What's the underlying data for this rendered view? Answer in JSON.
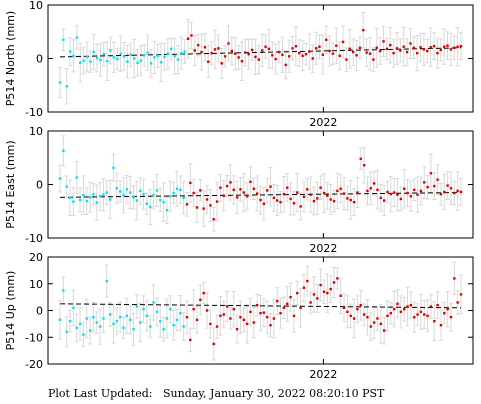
{
  "footer": {
    "label": "Plot Last Updated:",
    "timestamp": "Sunday, January 30, 2022 08:20:10 PST"
  },
  "colors": {
    "before": "#00e5ee",
    "after": "#dd0000",
    "errorbar": "#d8d8d8",
    "trend": "#000000"
  },
  "chart_data": [
    {
      "type": "scatter",
      "ylabel": "P514 North (mm)",
      "ylim": [
        -10,
        10
      ],
      "yticks": [
        -10,
        0,
        10
      ],
      "x_label": "2022",
      "trend": [
        0.3,
        2.0
      ],
      "split_index": 38,
      "values": [
        -4.5,
        3.5,
        -5.2,
        1.3,
        0.5,
        3.9,
        -0.8,
        -0.4,
        0.3,
        -0.6,
        1.2,
        0.1,
        -0.3,
        0.8,
        -0.5,
        1.5,
        0.2,
        -0.1,
        0.9,
        0.4,
        -0.6,
        0.7,
        0.0,
        -0.8,
        -0.4,
        0.6,
        1.1,
        -0.9,
        0.2,
        0.5,
        -0.7,
        0.3,
        0.9,
        1.8,
        0.4,
        -0.2,
        1.0,
        1.3,
        3.7,
        4.3,
        1.5,
        2.5,
        1.2,
        2.1,
        -0.6,
        1.0,
        1.7,
        1.9,
        -0.9,
        0.4,
        2.8,
        1.4,
        0.9,
        0.2,
        -0.5,
        1.1,
        0.8,
        1.6,
        0.3,
        -0.2,
        1.5,
        2.2,
        1.8,
        0.6,
        -0.1,
        1.2,
        0.7,
        -1.2,
        0.4,
        1.9,
        2.3,
        1.0,
        0.5,
        0.8,
        1.3,
        0.0,
        1.9,
        2.2,
        0.7,
        3.5,
        1.4,
        0.9,
        2.4,
        0.5,
        3.1,
        -0.2,
        1.8,
        1.2,
        0.6,
        2.0,
        5.3,
        1.1,
        0.9,
        -0.2,
        2.0,
        1.4,
        3.2,
        1.8,
        2.5,
        1.0,
        1.9,
        1.5,
        2.2,
        1.2,
        2.8,
        2.0,
        1.0,
        2.1,
        1.7,
        1.4,
        2.1,
        2.3,
        1.0,
        1.6,
        2.2,
        2.4,
        1.7,
        2.0,
        2.2,
        2.3
      ]
    },
    {
      "type": "scatter",
      "ylabel": "P514 East (mm)",
      "ylim": [
        -10,
        10
      ],
      "yticks": [
        -10,
        0,
        10
      ],
      "x_label": "2022",
      "trend": [
        -2.4,
        -1.5
      ],
      "split_index": 38,
      "values": [
        1.1,
        6.3,
        -0.4,
        -2.5,
        -3.2,
        1.3,
        -2.9,
        -2.0,
        -3.1,
        -2.4,
        -1.8,
        -3.4,
        -2.2,
        -1.9,
        -1.5,
        -2.8,
        3.1,
        -0.7,
        -1.3,
        -2.0,
        -0.9,
        -1.5,
        -2.4,
        -3.0,
        -1.2,
        -1.8,
        -3.6,
        -4.2,
        -2.0,
        -1.1,
        -2.9,
        -3.3,
        -4.8,
        -2.2,
        -1.6,
        -0.8,
        -1.0,
        -2.5,
        -3.7,
        0.3,
        -1.6,
        -4.3,
        -1.1,
        -4.5,
        -2.8,
        -3.9,
        -6.5,
        -3.2,
        -0.6,
        -2.1,
        -0.3,
        0.4,
        -1.0,
        -2.4,
        -0.9,
        -1.5,
        -2.2,
        0.5,
        -0.8,
        -1.7,
        -2.9,
        -3.6,
        -1.1,
        -0.4,
        -2.5,
        -3.0,
        -3.3,
        -1.8,
        -0.6,
        -2.7,
        -3.5,
        -1.5,
        -4.1,
        -2.3,
        -0.9,
        -1.9,
        -3.1,
        -2.6,
        -0.6,
        -1.6,
        -2.1,
        -2.8,
        -3.1,
        -1.2,
        -0.8,
        -1.7,
        -2.6,
        -2.9,
        -3.3,
        -1.5,
        4.8,
        3.6,
        -1.2,
        -0.7,
        0.2,
        -1.0,
        -2.5,
        -3.0,
        -1.4,
        -1.8,
        -1.5,
        -1.9,
        -2.7,
        -0.8,
        -1.6,
        -2.2,
        -1.0,
        -1.9,
        -1.2,
        0.4,
        -0.5,
        2.1,
        -0.3,
        0.9,
        -1.8,
        -1.4,
        -0.2,
        -0.7,
        -1.6,
        -1.2,
        -1.4
      ]
    },
    {
      "type": "scatter",
      "ylabel": "P514 Up (mm)",
      "ylim": [
        -20,
        20
      ],
      "yticks": [
        -20,
        -10,
        0,
        10,
        20
      ],
      "x_label": "2022",
      "trend": [
        2.5,
        1.0
      ],
      "split_index": 38,
      "values": [
        -3.5,
        7.5,
        -8.0,
        -4.0,
        1.0,
        -6.5,
        -5.0,
        -9.0,
        -3.0,
        -7.5,
        -2.5,
        -4.5,
        -6.0,
        -3.0,
        11.0,
        -1.5,
        -5.0,
        -4.0,
        -2.5,
        -6.5,
        -2.0,
        -3.5,
        -7.0,
        1.5,
        -4.5,
        0.5,
        -2.0,
        -6.0,
        3.0,
        -0.5,
        -4.0,
        -7.0,
        -3.0,
        0.5,
        -5.5,
        -3.5,
        -1.0,
        -6.0,
        -2.5,
        -11.0,
        0.5,
        -3.5,
        4.0,
        6.5,
        0.0,
        -5.0,
        -12.5,
        -6.0,
        -2.0,
        -1.5,
        1.5,
        -3.0,
        0.5,
        -7.0,
        -2.5,
        -3.5,
        -5.0,
        -0.5,
        -4.5,
        2.0,
        -1.0,
        -0.8,
        -2.5,
        -5.5,
        -3.0,
        3.5,
        -1.0,
        1.0,
        2.5,
        5.0,
        -2.0,
        6.5,
        1.0,
        8.5,
        11.0,
        3.0,
        6.0,
        4.5,
        9.5,
        7.0,
        6.5,
        8.0,
        10.5,
        12.0,
        5.5,
        1.0,
        -0.5,
        -2.0,
        -3.0,
        0.5,
        2.0,
        -1.5,
        -2.5,
        -6.0,
        -4.5,
        -3.0,
        -5.0,
        -7.5,
        -2.0,
        -1.0,
        0.5,
        2.5,
        -0.5,
        0.5,
        1.5,
        2.0,
        -2.5,
        -1.5,
        -0.5,
        -1.5,
        -2.0,
        1.5,
        -4.0,
        2.0,
        -5.5,
        -1.0,
        0.5,
        -2.5,
        12.0,
        3.0,
        6.0
      ]
    }
  ]
}
